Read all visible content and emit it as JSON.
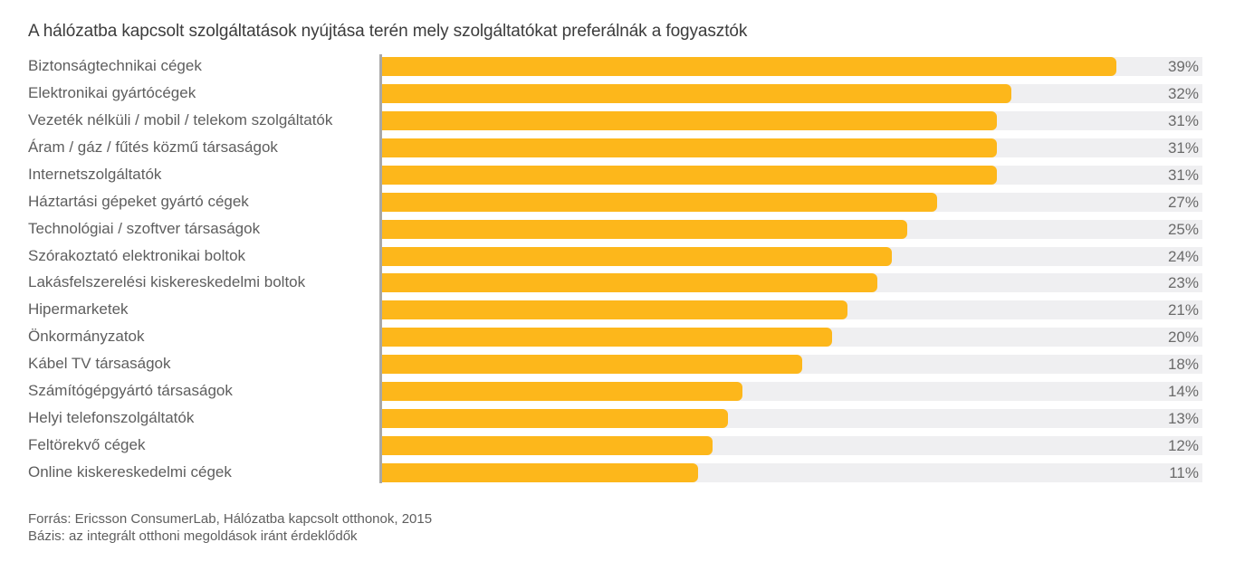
{
  "chart_data": {
    "type": "bar",
    "orientation": "horizontal",
    "title": "A hálózatba kapcsolt szolgáltatások nyújtása terén mely szolgáltatókat preferálnák a fogyasztók",
    "xlabel": "",
    "ylabel": "",
    "unit": "%",
    "grid": false,
    "categories": [
      "Biztonságtechnikai cégek",
      "Elektronikai gyártócégek",
      "Vezeték nélküli / mobil / telekom szolgáltatók",
      "Áram / gáz / fűtés közmű társaságok",
      "Internetszolgáltatók",
      "Háztartási gépeket gyártó cégek",
      "Technológiai / szoftver társaságok",
      "Szórakoztató elektronikai boltok",
      "Lakásfelszerelési kiskereskedelmi boltok",
      "Hipermarketek",
      "Önkormányzatok",
      "Kábel TV társaságok",
      "Számítógépgyártó társaságok",
      "Helyi telefonszolgáltatók",
      "Feltörekvő cégek",
      "Online kiskereskedelmi cégek"
    ],
    "values": [
      39,
      32,
      31,
      31,
      31,
      27,
      25,
      24,
      23,
      21,
      20,
      18,
      14,
      13,
      12,
      11
    ],
    "value_labels": [
      "39%",
      "32%",
      "31%",
      "31%",
      "31%",
      "27%",
      "25%",
      "24%",
      "23%",
      "21%",
      "20%",
      "18%",
      "14%",
      "13%",
      "12%",
      "11%"
    ],
    "colors": {
      "bar": "#fdb71b",
      "track": "#efeff1",
      "axis": "#a8a8a8"
    }
  },
  "footer": {
    "source": "Forrás: Ericsson ConsumerLab, Hálózatba kapcsolt otthonok, 2015",
    "base": "Bázis: az integrált otthoni megoldások iránt érdeklődők"
  }
}
